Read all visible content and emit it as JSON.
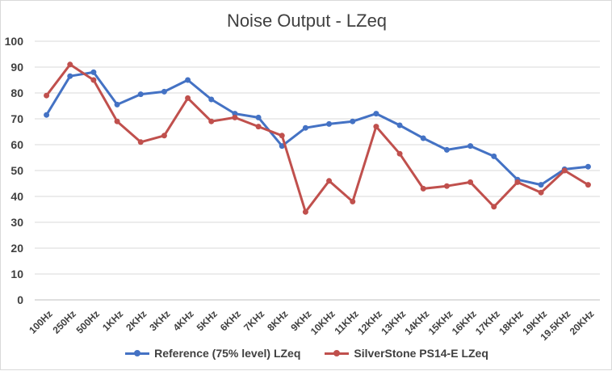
{
  "chart_data": {
    "type": "line",
    "title": "Noise Output  - LZeq",
    "xlabel": "",
    "ylabel": "",
    "ylim": [
      0,
      100
    ],
    "yticks": [
      0,
      10,
      20,
      30,
      40,
      50,
      60,
      70,
      80,
      90,
      100
    ],
    "grid": true,
    "legend_position": "bottom",
    "categories": [
      "100Hz",
      "250Hz",
      "500Hz",
      "1KHz",
      "2KHz",
      "3KHz",
      "4KHz",
      "5KHz",
      "6KHz",
      "7KHz",
      "8KHz",
      "9KHz",
      "10KHz",
      "11KHz",
      "12KHz",
      "13KHz",
      "14KHz",
      "15KHz",
      "16KHz",
      "17KHz",
      "18KHz",
      "19KHz",
      "19.5KHz",
      "20KHz"
    ],
    "series": [
      {
        "name": "Reference (75% level) LZeq",
        "color": "#4472c4",
        "values": [
          71.5,
          86.5,
          88,
          75.5,
          79.5,
          80.5,
          85,
          77.5,
          72,
          70.5,
          59.5,
          66.5,
          68,
          69,
          72,
          67.5,
          62.5,
          58,
          59.5,
          55.5,
          46.5,
          44.5,
          50.5,
          51.5
        ]
      },
      {
        "name": "SilverStone PS14-E LZeq",
        "color": "#c0504d",
        "values": [
          79,
          91,
          85,
          69,
          61,
          63.5,
          78,
          69,
          70.5,
          67,
          63.5,
          34,
          46,
          38,
          67,
          56.5,
          43,
          44,
          45.5,
          36,
          45.5,
          41.5,
          50,
          44.5
        ]
      }
    ]
  }
}
